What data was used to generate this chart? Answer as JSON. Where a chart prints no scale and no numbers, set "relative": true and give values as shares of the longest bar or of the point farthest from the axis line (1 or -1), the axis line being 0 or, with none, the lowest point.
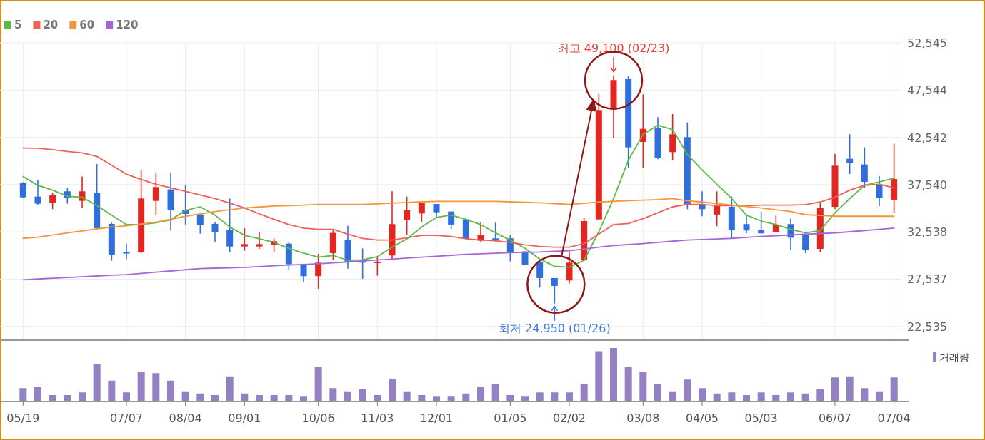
{
  "chart_data": [
    {
      "type": "candlestick",
      "categories": [
        null,
        null,
        null,
        null,
        null,
        null,
        null,
        null,
        null,
        null,
        null,
        null,
        null,
        null,
        null,
        null,
        null,
        null,
        null,
        null,
        null,
        null,
        null,
        null,
        null,
        null,
        null,
        null,
        null,
        null,
        null,
        null,
        null,
        null,
        null,
        null,
        null,
        null,
        null,
        null,
        null,
        null,
        null,
        null,
        null,
        null,
        null,
        null,
        null,
        null,
        null,
        null,
        null,
        null,
        null,
        null,
        null,
        null,
        null,
        null
      ],
      "ohlc": [
        [
          37700,
          37800,
          36100,
          36200
        ],
        [
          36270,
          38030,
          35390,
          35520
        ],
        [
          35570,
          36650,
          34940,
          36400
        ],
        [
          36830,
          37150,
          35520,
          36150
        ],
        [
          35820,
          38390,
          35070,
          36830
        ],
        [
          36650,
          39720,
          32930,
          32930
        ],
        [
          33380,
          33510,
          29480,
          30110
        ],
        [
          30360,
          31290,
          29660,
          30240
        ],
        [
          30360,
          39090,
          30290,
          36070
        ],
        [
          35820,
          38790,
          34310,
          37280
        ],
        [
          37030,
          38790,
          32680,
          34810
        ],
        [
          34870,
          37460,
          33310,
          34440
        ],
        [
          34390,
          34440,
          32350,
          33260
        ],
        [
          33380,
          33560,
          31470,
          32500
        ],
        [
          32750,
          36070,
          30360,
          30990
        ],
        [
          30990,
          32930,
          30540,
          31240
        ],
        [
          30990,
          32480,
          30740,
          31240
        ],
        [
          31170,
          31850,
          30360,
          31550
        ],
        [
          31290,
          31420,
          28480,
          29110
        ],
        [
          29110,
          29110,
          27220,
          27850
        ],
        [
          27850,
          30210,
          26520,
          29280
        ],
        [
          30290,
          32680,
          29530,
          32430
        ],
        [
          31670,
          33180,
          28650,
          29360
        ],
        [
          29460,
          30790,
          27570,
          29280
        ],
        [
          29230,
          29830,
          27900,
          29360
        ],
        [
          30040,
          36830,
          29660,
          33360
        ],
        [
          33760,
          36270,
          32250,
          34870
        ],
        [
          34490,
          35570,
          33610,
          35570
        ],
        [
          35490,
          35490,
          34060,
          34610
        ],
        [
          34690,
          34690,
          32850,
          33310
        ],
        [
          33860,
          34060,
          31800,
          31800
        ],
        [
          31600,
          33560,
          31500,
          32170
        ],
        [
          31850,
          33510,
          31500,
          31670
        ],
        [
          31850,
          32170,
          29410,
          30290
        ],
        [
          30460,
          30460,
          29080,
          29080
        ],
        [
          29360,
          29360,
          26640,
          27650
        ],
        [
          27650,
          27650,
          24950,
          26820
        ],
        [
          27400,
          30410,
          27070,
          29280
        ],
        [
          29530,
          34060,
          29480,
          33680
        ],
        [
          33860,
          47140,
          33860,
          45430
        ],
        [
          45500,
          49100,
          42490,
          48600
        ],
        [
          48700,
          49020,
          39290,
          41480
        ],
        [
          42060,
          47090,
          39340,
          43440
        ],
        [
          43490,
          44670,
          40220,
          40350
        ],
        [
          40980,
          45000,
          40100,
          42860
        ],
        [
          42560,
          44120,
          34940,
          35440
        ],
        [
          35490,
          36830,
          34190,
          34940
        ],
        [
          34370,
          36830,
          33130,
          35390
        ],
        [
          35190,
          36270,
          31800,
          32730
        ],
        [
          33360,
          34360,
          32380,
          32680
        ],
        [
          32750,
          34690,
          32380,
          32380
        ],
        [
          32550,
          34260,
          32550,
          33310
        ],
        [
          33360,
          33940,
          30590,
          31920
        ],
        [
          32300,
          32430,
          30290,
          30590
        ],
        [
          30740,
          35620,
          30410,
          35070
        ],
        [
          35190,
          40800,
          34940,
          39540
        ],
        [
          40270,
          42860,
          38660,
          39790
        ],
        [
          39670,
          41480,
          37210,
          37830
        ],
        [
          37580,
          38460,
          35270,
          36120
        ],
        [
          35950,
          41860,
          34510,
          38130
        ]
      ],
      "series": [
        {
          "name": "5",
          "type": "line",
          "color": "#5cb94a",
          "values": [
            38390,
            37460,
            36950,
            36320,
            36200,
            35320,
            34310,
            33310,
            33310,
            33510,
            33810,
            34810,
            35190,
            34310,
            33050,
            32170,
            31800,
            31420,
            30790,
            30290,
            29860,
            30040,
            29530,
            29580,
            29910,
            30920,
            31800,
            33050,
            34060,
            34310,
            33860,
            33310,
            32430,
            31670,
            30790,
            29660,
            28900,
            28780,
            29530,
            32550,
            36070,
            40100,
            42860,
            43820,
            43370,
            40730,
            39090,
            37580,
            36070,
            34310,
            33680,
            33310,
            32800,
            32430,
            32680,
            34560,
            36070,
            37460,
            37830,
            38210
          ]
        },
        {
          "name": "20",
          "type": "line",
          "color": "#f0605a",
          "values": [
            41400,
            41380,
            41230,
            41050,
            40900,
            40520,
            39590,
            38640,
            38080,
            37580,
            37200,
            36830,
            36450,
            36070,
            35570,
            35070,
            34440,
            33860,
            33310,
            32930,
            32800,
            32800,
            32300,
            31850,
            31670,
            31670,
            31920,
            32170,
            32170,
            32050,
            31800,
            31670,
            31600,
            31420,
            31170,
            30990,
            30920,
            30920,
            31290,
            32300,
            33310,
            33430,
            33930,
            34560,
            35190,
            35440,
            35440,
            35320,
            35320,
            35320,
            35370,
            35370,
            35370,
            35420,
            35700,
            36200,
            36950,
            37460,
            37580,
            37200
          ]
        },
        {
          "name": "60",
          "type": "line",
          "color": "#f5963a",
          "values": [
            31850,
            31970,
            32200,
            32430,
            32630,
            32850,
            33050,
            33180,
            33370,
            33560,
            33870,
            34190,
            34440,
            34690,
            34880,
            35070,
            35170,
            35270,
            35320,
            35370,
            35440,
            35440,
            35440,
            35440,
            35500,
            35570,
            35650,
            35720,
            35770,
            35770,
            35770,
            35770,
            35770,
            35720,
            35670,
            35620,
            35530,
            35440,
            35560,
            35700,
            35770,
            35850,
            35900,
            35950,
            36070,
            35820,
            35700,
            35530,
            35370,
            35220,
            35070,
            34880,
            34690,
            34360,
            34270,
            34190,
            34190,
            34190,
            34190,
            34190
          ]
        },
        {
          "name": "120",
          "type": "line",
          "color": "#a566d6",
          "values": [
            27470,
            27550,
            27630,
            27710,
            27790,
            27870,
            27950,
            28020,
            28150,
            28280,
            28400,
            28530,
            28650,
            28700,
            28740,
            28780,
            28860,
            28950,
            29030,
            29090,
            29160,
            29260,
            29360,
            29460,
            29560,
            29660,
            29760,
            29860,
            29960,
            30060,
            30160,
            30220,
            30280,
            30340,
            30380,
            30410,
            30480,
            30540,
            30730,
            30920,
            31090,
            31190,
            31290,
            31420,
            31550,
            31670,
            31730,
            31790,
            31850,
            31950,
            32050,
            32130,
            32210,
            32300,
            32360,
            32430,
            32550,
            32680,
            32800,
            32930
          ]
        }
      ],
      "ylim": [
        21080,
        52545
      ],
      "yticks": [
        {
          "value": 22535,
          "label": "22,535"
        },
        {
          "value": 27537,
          "label": "27,537"
        },
        {
          "value": 32538,
          "label": "32,538"
        },
        {
          "value": 37540,
          "label": "37,540"
        },
        {
          "value": 42542,
          "label": "42,542"
        },
        {
          "value": 47544,
          "label": "47,544"
        },
        {
          "value": 52545,
          "label": "52,545"
        }
      ],
      "grid": true,
      "legend": "top left",
      "tick_labels": "y",
      "annotations": [
        {
          "text": "최고 49,100 (02/23)",
          "y": 49100
        },
        {
          "text": "최저 24,950 (01/26)",
          "y": 24950
        }
      ]
    },
    {
      "type": "bar",
      "relative": true,
      "tick_labels": "x",
      "legend": "top right",
      "categories": [
        "05/19",
        null,
        null,
        null,
        null,
        null,
        null,
        "07/07",
        null,
        null,
        null,
        "08/04",
        null,
        null,
        null,
        "09/01",
        null,
        null,
        null,
        null,
        "10/06",
        null,
        null,
        null,
        "11/03",
        null,
        null,
        null,
        "12/01",
        null,
        null,
        null,
        null,
        "01/05",
        null,
        null,
        null,
        "02/02",
        null,
        null,
        null,
        null,
        "03/08",
        null,
        null,
        null,
        "04/05",
        null,
        null,
        null,
        "05/03",
        null,
        null,
        null,
        null,
        "06/07",
        null,
        null,
        null,
        "07/04"
      ],
      "series": [
        {
          "name": "거래량",
          "color": "#9381c3",
          "values": [
            0.25,
            0.28,
            0.12,
            0.12,
            0.17,
            0.7,
            0.39,
            0.17,
            0.56,
            0.53,
            0.39,
            0.19,
            0.15,
            0.12,
            0.47,
            0.15,
            0.12,
            0.12,
            0.12,
            0.09,
            0.64,
            0.25,
            0.19,
            0.23,
            0.12,
            0.42,
            0.19,
            0.12,
            0.09,
            0.09,
            0.15,
            0.28,
            0.33,
            0.12,
            0.09,
            0.17,
            0.17,
            0.17,
            0.33,
            0.94,
            1,
            0.64,
            0.56,
            0.33,
            0.19,
            0.41,
            0.25,
            0.15,
            0.17,
            0.12,
            0.17,
            0.12,
            0.17,
            0.15,
            0.23,
            0.45,
            0.47,
            0.25,
            0.19,
            0.45
          ]
        }
      ]
    }
  ]
}
